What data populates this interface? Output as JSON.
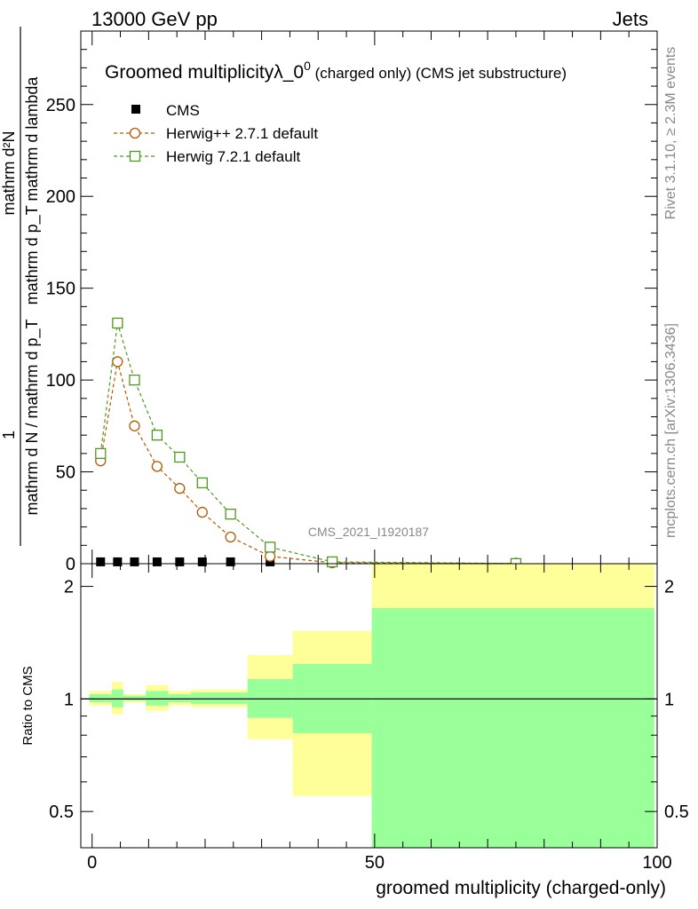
{
  "header": {
    "left": "13000 GeV pp",
    "right": "Jets"
  },
  "side": {
    "rivet": "Rivet 3.1.10, ≥ 2.3M events",
    "mcplots": "mcplots.cern.ch [arXiv:1306.3436]"
  },
  "chart_data": [
    {
      "type": "line",
      "title": "Groomed multiplicityλ_0",
      "title_sup": "0",
      "title_suffix": " (charged only) (CMS jet substructure)",
      "ylabel_numerator_top": "mathrm d²N",
      "ylabel_numerator_bottom": "mathrm d p_T mathrm d lambda",
      "ylabel_one": "1",
      "ylabel_denominator": "mathrm d N / mathrm d p_T",
      "xlim": [
        -2,
        100
      ],
      "ylim": [
        0,
        290
      ],
      "yticks": [
        0,
        50,
        100,
        150,
        200,
        250
      ],
      "watermark": "CMS_2021_I1920187",
      "legend_position": "top-left",
      "series": [
        {
          "name": "CMS",
          "color": "#000000",
          "marker": "filled-square",
          "x": [
            1.5,
            4.5,
            7.5,
            11.5,
            15.5,
            19.5,
            24.5,
            31.5,
            42.5,
            75.0
          ],
          "y": [
            1,
            1,
            1,
            1,
            1,
            1,
            1,
            1,
            0.5,
            0.2
          ]
        },
        {
          "name": "Herwig++ 2.7.1 default",
          "color": "#b35900",
          "marker": "open-circle",
          "x": [
            1.5,
            4.5,
            7.5,
            11.5,
            15.5,
            19.5,
            24.5,
            31.5,
            42.5,
            75.0
          ],
          "y": [
            56,
            110,
            75,
            53,
            41,
            28,
            14.5,
            4,
            0.5,
            0.1
          ]
        },
        {
          "name": "Herwig 7.2.1 default",
          "color": "#4d9920",
          "marker": "open-square",
          "x": [
            1.5,
            4.5,
            7.5,
            11.5,
            15.5,
            19.5,
            24.5,
            31.5,
            42.5,
            75.0
          ],
          "y": [
            60,
            131,
            100,
            70,
            58,
            44,
            27,
            9,
            1,
            0.1
          ]
        }
      ]
    },
    {
      "type": "area",
      "ylabel": "Ratio to CMS",
      "xlabel": "groomed multiplicity (charged-only)",
      "xlim": [
        -2,
        100
      ],
      "ylim": [
        0.4,
        2.3
      ],
      "xticks": [
        0,
        50,
        100
      ],
      "yticks": [
        0.5,
        1,
        2
      ],
      "bins": [
        {
          "lo": -0.5,
          "hi": 3.5,
          "yellow": [
            0.96,
            1.05
          ],
          "green": [
            0.98,
            1.03
          ]
        },
        {
          "lo": 3.5,
          "hi": 5.5,
          "yellow": [
            0.91,
            1.11
          ],
          "green": [
            0.95,
            1.06
          ]
        },
        {
          "lo": 5.5,
          "hi": 9.5,
          "yellow": [
            0.98,
            1.03
          ],
          "green": [
            0.99,
            1.02
          ]
        },
        {
          "lo": 9.5,
          "hi": 13.5,
          "yellow": [
            0.93,
            1.09
          ],
          "green": [
            0.96,
            1.05
          ]
        },
        {
          "lo": 13.5,
          "hi": 17.5,
          "yellow": [
            0.96,
            1.05
          ],
          "green": [
            0.98,
            1.03
          ]
        },
        {
          "lo": 17.5,
          "hi": 27.5,
          "yellow": [
            0.95,
            1.06
          ],
          "green": [
            0.97,
            1.04
          ]
        },
        {
          "lo": 27.5,
          "hi": 35.5,
          "yellow": [
            0.78,
            1.31
          ],
          "green": [
            0.89,
            1.13
          ]
        },
        {
          "lo": 35.5,
          "hi": 49.5,
          "yellow": [
            0.55,
            1.52
          ],
          "green": [
            0.81,
            1.24
          ]
        },
        {
          "lo": 49.5,
          "hi": 99.5,
          "yellow": [
            0.4,
            2.3
          ],
          "green": [
            0.4,
            1.75
          ]
        }
      ]
    }
  ]
}
